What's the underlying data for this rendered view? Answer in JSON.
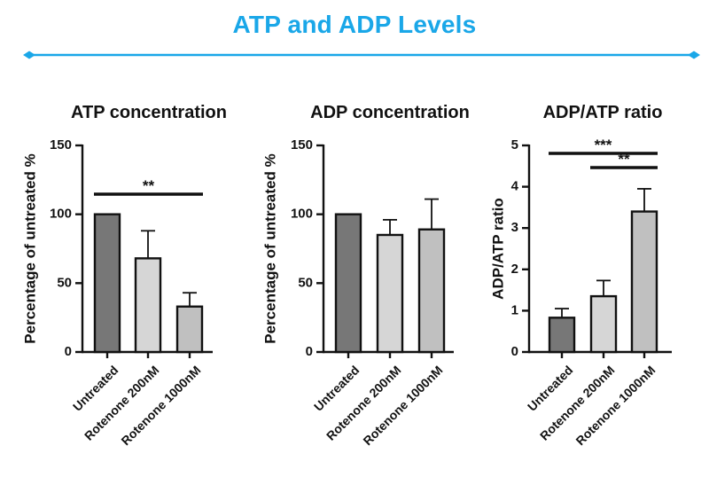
{
  "header": {
    "title": "ATP and ADP Levels",
    "accent_color": "#1aa7e8"
  },
  "chart_data": [
    {
      "type": "bar",
      "title": "ATP concentration",
      "ylabel": "Percentage of untreated %",
      "xlabel": "",
      "ylim": [
        0,
        150
      ],
      "yticks": [
        "0",
        "50",
        "100",
        "150"
      ],
      "categories": [
        "Untreated",
        "Rotenone 200nM",
        "Rotenone 1000nM"
      ],
      "values": [
        100,
        68,
        33
      ],
      "errors": [
        0,
        20,
        10
      ],
      "bar_colors": [
        "#777777",
        "#d6d6d6",
        "#c0c0c0"
      ],
      "significance": [
        {
          "from": 0,
          "to": 2,
          "level": 1,
          "label": "**"
        }
      ]
    },
    {
      "type": "bar",
      "title": "ADP concentration",
      "ylabel": "Percentage of untreated %",
      "xlabel": "",
      "ylim": [
        0,
        150
      ],
      "yticks": [
        "0",
        "50",
        "100",
        "150"
      ],
      "categories": [
        "Untreated",
        "Rotenone 200nM",
        "Rotenone 1000nM"
      ],
      "values": [
        100,
        85,
        89
      ],
      "errors": [
        0,
        11,
        22
      ],
      "bar_colors": [
        "#777777",
        "#d6d6d6",
        "#c0c0c0"
      ],
      "significance": []
    },
    {
      "type": "bar",
      "title": "ADP/ATP ratio",
      "ylabel": "ADP/ATP ratio",
      "xlabel": "",
      "ylim": [
        0,
        5
      ],
      "yticks": [
        "0",
        "1",
        "2",
        "3",
        "4",
        "5"
      ],
      "categories": [
        "Untreated",
        "Rotenone 200nM",
        "Rotenone 1000nM"
      ],
      "values": [
        0.83,
        1.35,
        3.4
      ],
      "errors": [
        0.22,
        0.38,
        0.55
      ],
      "bar_colors": [
        "#777777",
        "#d6d6d6",
        "#c0c0c0"
      ],
      "significance": [
        {
          "from": 0,
          "to": 2,
          "level": 2,
          "label": "***"
        },
        {
          "from": 1,
          "to": 2,
          "level": 1,
          "label": "**"
        }
      ]
    }
  ]
}
